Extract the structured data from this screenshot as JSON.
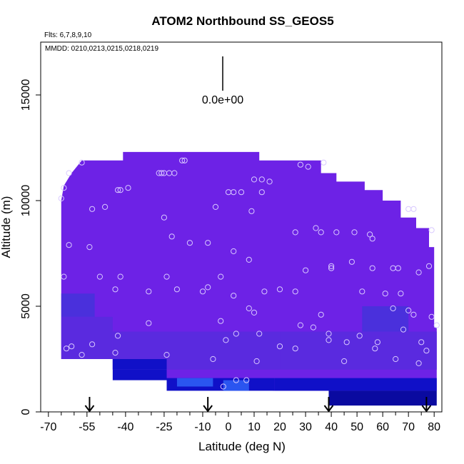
{
  "chart_data": {
    "type": "heatmap",
    "title": "ATOM2 Northbound SS_GEOS5",
    "flights_label": "Flts: 6,7,8,9,10",
    "dates_label": "MMDD: 0210,0213,0215,0218,0219",
    "colorbar_label": "0.0e+00",
    "xlabel": "Latitude (deg N)",
    "ylabel": "Altitude (m)",
    "xlim": [
      -73,
      83
    ],
    "ylim": [
      0,
      17500
    ],
    "x_ticks": [
      -70,
      -55,
      -40,
      -25,
      -10,
      0,
      10,
      20,
      30,
      40,
      50,
      60,
      70,
      80
    ],
    "y_ticks": [
      0,
      5000,
      10000,
      15000
    ],
    "grid": false,
    "colors": {
      "background_field": "#6a20e4",
      "upper_field": "#6d22e6",
      "mid_field": "#5a2adf",
      "lower_field_light": "#4a30dc",
      "boundary_layer_dark": "#1010c8",
      "boundary_layer_deep": "#0a0aa0",
      "boundary_layer_bright": "#2a55f0",
      "marker_stroke": "#d8c8ff"
    },
    "flight_arrows_lat": [
      -54,
      -8,
      39,
      77
    ],
    "field_outline": [
      [
        -65,
        2500
      ],
      [
        -65,
        10000
      ],
      [
        -64,
        10700
      ],
      [
        -61,
        11300
      ],
      [
        -57,
        11900
      ],
      [
        -41,
        11900
      ],
      [
        -41,
        12300
      ],
      [
        -6,
        12300
      ],
      [
        -6,
        12900
      ],
      [
        -6,
        12300
      ],
      [
        12,
        12300
      ],
      [
        12,
        11900
      ],
      [
        36,
        11900
      ],
      [
        36,
        11300
      ],
      [
        42,
        11300
      ],
      [
        42,
        10900
      ],
      [
        53,
        10900
      ],
      [
        53,
        10500
      ],
      [
        60,
        10500
      ],
      [
        60,
        10000
      ],
      [
        67,
        10000
      ],
      [
        67,
        9200
      ],
      [
        73,
        9200
      ],
      [
        73,
        8700
      ],
      [
        78,
        8700
      ],
      [
        78,
        7800
      ],
      [
        80,
        7800
      ],
      [
        80,
        4000
      ],
      [
        81,
        4000
      ],
      [
        81,
        1000
      ],
      [
        39,
        1000
      ],
      [
        39,
        1000
      ],
      [
        18,
        1000
      ],
      [
        18,
        1000
      ],
      [
        -24,
        1500
      ],
      [
        -24,
        2000
      ],
      [
        -45,
        2000
      ],
      [
        -45,
        2500
      ]
    ],
    "observation_points": [
      [
        -65,
        10100
      ],
      [
        -64,
        10600
      ],
      [
        -62,
        11300
      ],
      [
        -57,
        11800
      ],
      [
        -43,
        10500
      ],
      [
        -42,
        10500
      ],
      [
        -39,
        10600
      ],
      [
        -53,
        9600
      ],
      [
        -48,
        9700
      ],
      [
        -62,
        7900
      ],
      [
        -54,
        7800
      ],
      [
        -27,
        11300
      ],
      [
        -26,
        11300
      ],
      [
        -25,
        11300
      ],
      [
        -23,
        11300
      ],
      [
        -21,
        11300
      ],
      [
        -18,
        11900
      ],
      [
        -17,
        11900
      ],
      [
        -25,
        9200
      ],
      [
        -5,
        9700
      ],
      [
        -15,
        8000
      ],
      [
        -22,
        8300
      ],
      [
        -8,
        8000
      ],
      [
        0,
        10400
      ],
      [
        2,
        10400
      ],
      [
        5,
        10400
      ],
      [
        9,
        9500
      ],
      [
        10,
        11000
      ],
      [
        13,
        10400
      ],
      [
        13,
        11000
      ],
      [
        16,
        10900
      ],
      [
        28,
        11700
      ],
      [
        31,
        11600
      ],
      [
        37,
        11800
      ],
      [
        2,
        7600
      ],
      [
        8,
        7200
      ],
      [
        26,
        8500
      ],
      [
        34,
        8700
      ],
      [
        36,
        8500
      ],
      [
        42,
        8500
      ],
      [
        49,
        8500
      ],
      [
        55,
        8400
      ],
      [
        56,
        8200
      ],
      [
        70,
        9600
      ],
      [
        72,
        9600
      ],
      [
        79,
        8600
      ],
      [
        40,
        6900
      ],
      [
        40,
        6800
      ],
      [
        48,
        7100
      ],
      [
        56,
        6800
      ],
      [
        64,
        6800
      ],
      [
        66,
        6800
      ],
      [
        74,
        6600
      ],
      [
        78,
        6900
      ],
      [
        -64,
        6400
      ],
      [
        -50,
        6400
      ],
      [
        -42,
        6400
      ],
      [
        -24,
        6400
      ],
      [
        -3,
        6400
      ],
      [
        -44,
        5800
      ],
      [
        -31,
        5700
      ],
      [
        -20,
        5800
      ],
      [
        -10,
        5700
      ],
      [
        -8,
        5900
      ],
      [
        2,
        5500
      ],
      [
        8,
        4900
      ],
      [
        10,
        4700
      ],
      [
        14,
        5700
      ],
      [
        20,
        5800
      ],
      [
        26,
        5700
      ],
      [
        30,
        6700
      ],
      [
        36,
        4600
      ],
      [
        52,
        5700
      ],
      [
        61,
        5600
      ],
      [
        64,
        4900
      ],
      [
        67,
        5600
      ],
      [
        70,
        4800
      ],
      [
        -63,
        3000
      ],
      [
        -61,
        3100
      ],
      [
        -57,
        2700
      ],
      [
        -53,
        3200
      ],
      [
        -44,
        2800
      ],
      [
        -43,
        3600
      ],
      [
        -31,
        4200
      ],
      [
        -24,
        2700
      ],
      [
        -6,
        2500
      ],
      [
        -3,
        4300
      ],
      [
        -1,
        3400
      ],
      [
        3,
        3700
      ],
      [
        11,
        2400
      ],
      [
        12,
        3700
      ],
      [
        20,
        3100
      ],
      [
        26,
        3000
      ],
      [
        28,
        4100
      ],
      [
        33,
        4000
      ],
      [
        39,
        3700
      ],
      [
        39,
        3400
      ],
      [
        45,
        2400
      ],
      [
        46,
        3300
      ],
      [
        51,
        3600
      ],
      [
        57,
        3000
      ],
      [
        58,
        3300
      ],
      [
        65,
        2500
      ],
      [
        68,
        3900
      ],
      [
        72,
        4600
      ],
      [
        74,
        2300
      ],
      [
        75,
        3300
      ],
      [
        77,
        2900
      ],
      [
        79,
        4500
      ],
      [
        81,
        4100
      ],
      [
        -2,
        1200
      ],
      [
        3,
        1500
      ],
      [
        7,
        1500
      ]
    ]
  }
}
